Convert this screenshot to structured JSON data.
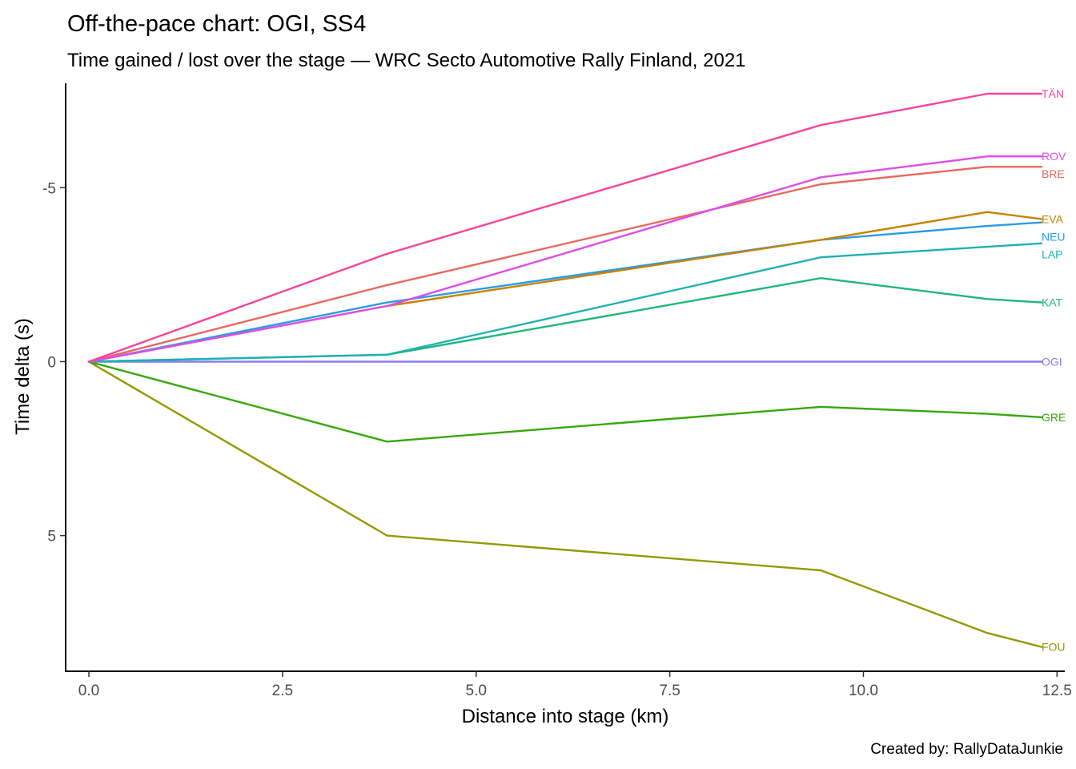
{
  "chart_data": {
    "type": "line",
    "title": "Off-the-pace chart: OGI, SS4",
    "subtitle": "Time gained / lost over the stage — WRC Secto Automotive Rally Finland, 2021",
    "xlabel": "Distance into stage (km)",
    "ylabel": "Time delta (s)",
    "caption": "Created by: RallyDataJunkie",
    "xlim": [
      -0.3,
      12.6
    ],
    "ylim": [
      -8.0,
      8.9
    ],
    "y_reversed": true,
    "grid": false,
    "legend": "none (direct labels at line ends)",
    "x_ticks": [
      {
        "value": 0,
        "label": "0.0"
      },
      {
        "value": 2.5,
        "label": "2.5"
      },
      {
        "value": 5,
        "label": "5.0"
      },
      {
        "value": 7.5,
        "label": "7.5"
      },
      {
        "value": 10,
        "label": "10.0"
      },
      {
        "value": 12.5,
        "label": "12.5"
      }
    ],
    "y_ticks": [
      {
        "value": -5,
        "label": "-5"
      },
      {
        "value": 0,
        "label": "0"
      },
      {
        "value": 5,
        "label": "5"
      }
    ],
    "x": [
      0,
      3.85,
      9.45,
      11.6,
      12.3
    ],
    "series": [
      {
        "name": "TÄN",
        "label": "TÄN",
        "color": "#F8439E",
        "values": [
          0,
          -3.1,
          -6.8,
          -7.7,
          -7.7
        ]
      },
      {
        "name": "ROV",
        "label": "ROV",
        "color": "#DE4CEB",
        "values": [
          0,
          -1.6,
          -5.3,
          -5.9,
          -5.9
        ]
      },
      {
        "name": "BRE",
        "label": "BRE",
        "color": "#E8685F",
        "values": [
          0,
          -2.2,
          -5.1,
          -5.6,
          -5.6
        ]
      },
      {
        "name": "EVA",
        "label": "EVA",
        "color": "#C98200",
        "values": [
          0,
          -1.6,
          -3.5,
          -4.3,
          -4.1
        ]
      },
      {
        "name": "NEU",
        "label": "NEU",
        "color": "#2A9BE6",
        "values": [
          0,
          -1.7,
          -3.5,
          -3.9,
          -4.0
        ]
      },
      {
        "name": "LAP",
        "label": "LAP",
        "color": "#1EB1B1",
        "values": [
          0,
          -0.2,
          -3.0,
          -3.3,
          -3.4
        ]
      },
      {
        "name": "KAT",
        "label": "KAT",
        "color": "#1FB77B",
        "values": [
          0,
          -0.2,
          -2.4,
          -1.8,
          -1.7
        ]
      },
      {
        "name": "OGI",
        "label": "OGI",
        "color": "#8C7CEF",
        "values": [
          0,
          0,
          0,
          0,
          0
        ]
      },
      {
        "name": "GRE",
        "label": "GRE",
        "color": "#36A80C",
        "values": [
          0,
          2.3,
          1.3,
          1.5,
          1.6
        ]
      },
      {
        "name": "FOU",
        "label": "FOU",
        "color": "#929A00",
        "values": [
          0,
          5.0,
          6.0,
          7.8,
          8.2
        ]
      }
    ]
  }
}
